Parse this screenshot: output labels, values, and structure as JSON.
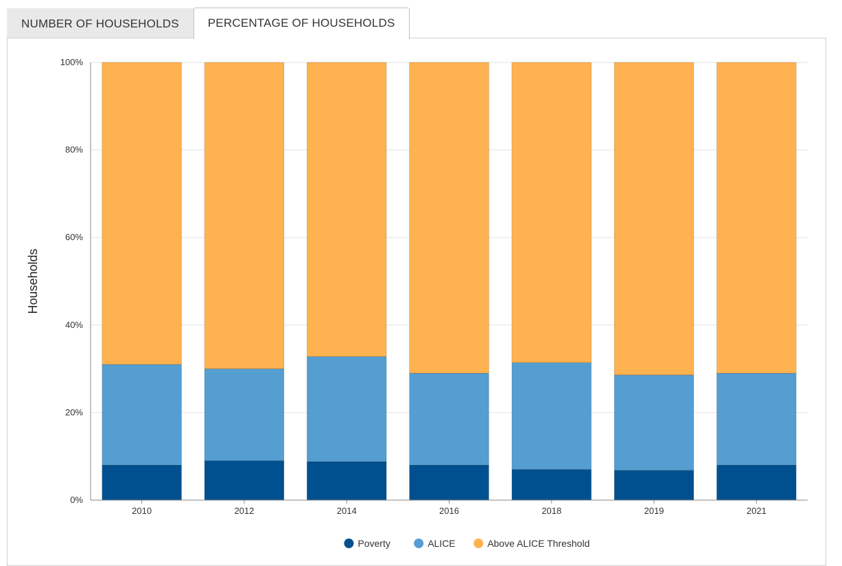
{
  "tabs": [
    {
      "label": "NUMBER OF HOUSEHOLDS",
      "active": false
    },
    {
      "label": "PERCENTAGE OF HOUSEHOLDS",
      "active": true
    }
  ],
  "colors": {
    "poverty": "#00508f",
    "alice": "#549ed1",
    "above": "#ffb250",
    "grid": "#e3e3e3",
    "axis": "#888888"
  },
  "chart_data": {
    "type": "bar",
    "stacked": true,
    "ylabel": "Households",
    "xlabel": "",
    "ylim": [
      0,
      100
    ],
    "yticks": [
      0,
      20,
      40,
      60,
      80,
      100
    ],
    "ytick_labels": [
      "0%",
      "20%",
      "40%",
      "60%",
      "80%",
      "100%"
    ],
    "grid": true,
    "legend_position": "bottom-center",
    "categories": [
      "2010",
      "2012",
      "2014",
      "2016",
      "2018",
      "2019",
      "2021"
    ],
    "series": [
      {
        "name": "Poverty",
        "color": "#00508f",
        "values": [
          8,
          9,
          8.8,
          8,
          7,
          6.8,
          8
        ]
      },
      {
        "name": "ALICE",
        "color": "#549ed1",
        "values": [
          23,
          21,
          24,
          21,
          24.4,
          21.8,
          21
        ]
      },
      {
        "name": "Above ALICE Threshold",
        "color": "#ffb250",
        "values": [
          69,
          70,
          67.2,
          71,
          68.6,
          71.4,
          71
        ]
      }
    ]
  }
}
